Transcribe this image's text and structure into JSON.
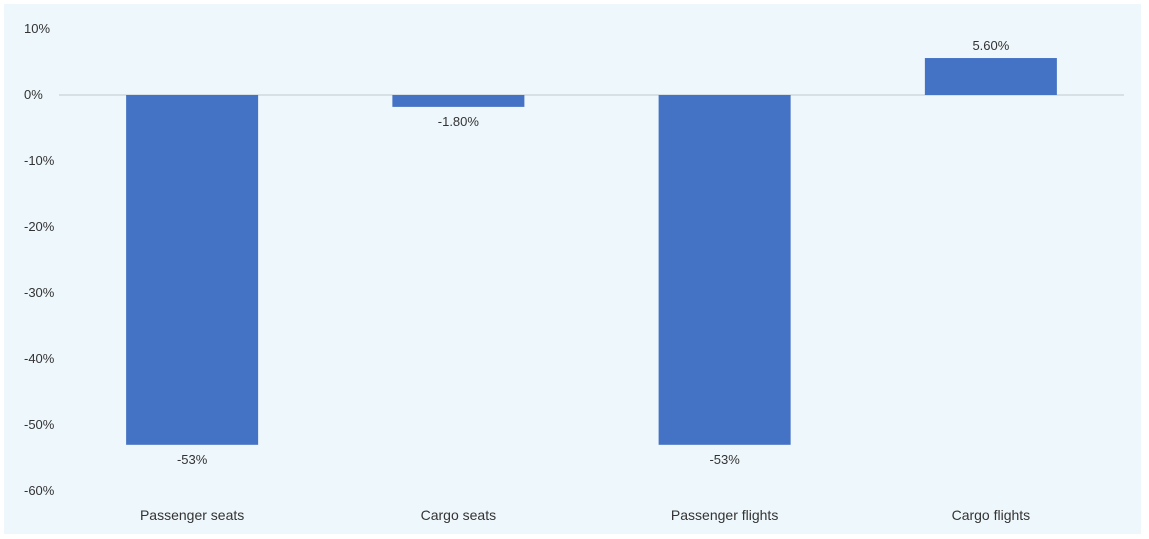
{
  "chart_data": {
    "type": "bar",
    "categories": [
      "Passenger seats",
      "Cargo seats",
      "Passenger flights",
      "Cargo flights"
    ],
    "values": [
      -53,
      -1.8,
      -53,
      5.6
    ],
    "data_labels": [
      "-53%",
      "-1.80%",
      "-53%",
      "5.60%"
    ],
    "ylim": [
      -60,
      10
    ],
    "yticks": [
      10,
      0,
      -10,
      -20,
      -30,
      -40,
      -50,
      -60
    ],
    "ytick_labels": [
      "10%",
      "0%",
      "-10%",
      "-20%",
      "-30%",
      "-40%",
      "-50%",
      "-60%"
    ],
    "bar_color": "#4472c4",
    "background_color": "#eef7fc",
    "grid": false,
    "legend": "none"
  }
}
